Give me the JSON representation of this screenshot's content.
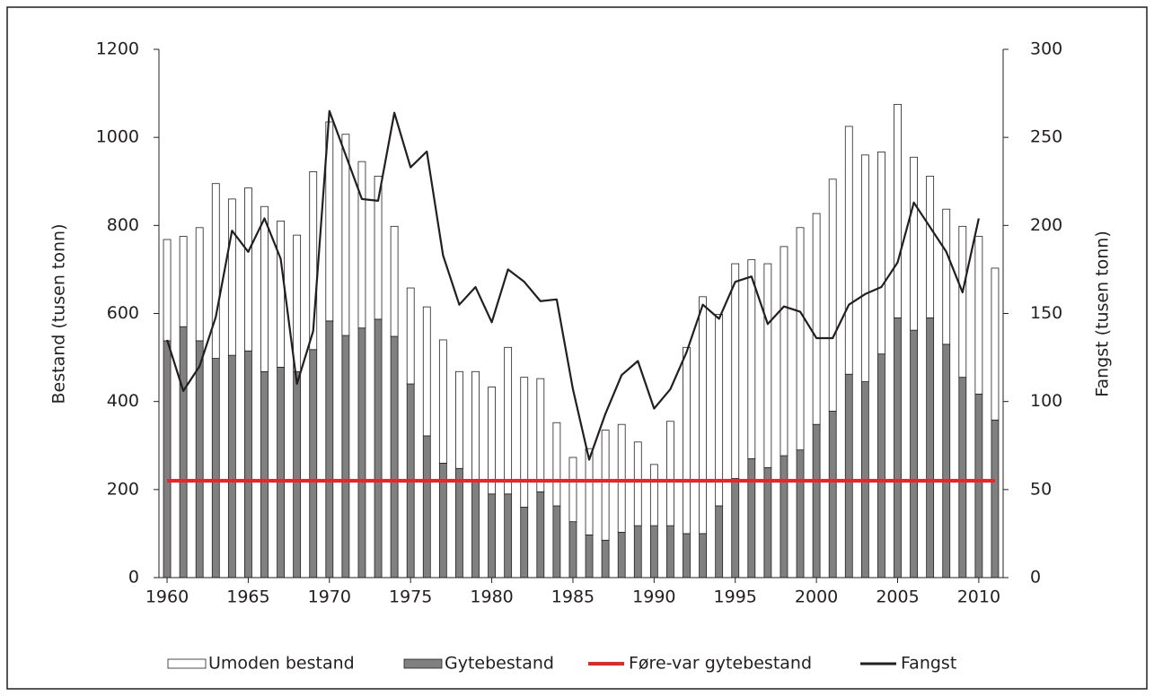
{
  "chart_data": {
    "type": "bar",
    "x": [
      1960,
      1961,
      1962,
      1963,
      1964,
      1965,
      1966,
      1967,
      1968,
      1969,
      1970,
      1971,
      1972,
      1973,
      1974,
      1975,
      1976,
      1977,
      1978,
      1979,
      1980,
      1981,
      1982,
      1983,
      1984,
      1985,
      1986,
      1987,
      1988,
      1989,
      1990,
      1991,
      1992,
      1993,
      1994,
      1995,
      1996,
      1997,
      1998,
      1999,
      2000,
      2001,
      2002,
      2003,
      2004,
      2005,
      2006,
      2007,
      2008,
      2009,
      2010,
      2011
    ],
    "xlim": [
      1959.5,
      2011.5
    ],
    "xticks": [
      1960,
      1965,
      1970,
      1975,
      1980,
      1985,
      1990,
      1995,
      2000,
      2005,
      2010
    ],
    "ylabel": "Bestand (tusen tonn)",
    "y2label": "Fangst (tusen tonn)",
    "ylim": [
      0,
      1200
    ],
    "yticks": [
      0,
      200,
      400,
      600,
      800,
      1000,
      1200
    ],
    "y2lim": [
      0,
      300
    ],
    "y2ticks": [
      0,
      50,
      100,
      150,
      200,
      250,
      300
    ],
    "series": [
      {
        "name": "Umoden bestand",
        "type": "bar",
        "color": "#ffffff",
        "values": [
          230,
          205,
          257,
          397,
          355,
          370,
          375,
          332,
          310,
          404,
          452,
          457,
          378,
          325,
          250,
          218,
          293,
          280,
          220,
          248,
          243,
          333,
          295,
          257,
          189,
          146,
          196,
          250,
          245,
          190,
          139,
          237,
          423,
          538,
          435,
          488,
          452,
          463,
          475,
          505,
          479,
          527,
          563,
          515,
          459,
          485,
          393,
          322,
          307,
          343,
          358,
          345
        ]
      },
      {
        "name": "Gytebestand",
        "type": "bar",
        "color": "#808080",
        "values": [
          538,
          570,
          538,
          498,
          505,
          515,
          468,
          478,
          468,
          518,
          583,
          550,
          567,
          587,
          548,
          440,
          322,
          260,
          248,
          220,
          190,
          190,
          160,
          195,
          163,
          127,
          97,
          85,
          103,
          118,
          118,
          118,
          100,
          100,
          163,
          225,
          270,
          250,
          277,
          290,
          348,
          378,
          462,
          445,
          508,
          590,
          562,
          590,
          530,
          455,
          417,
          358
        ]
      },
      {
        "name": "Føre-var gytebestand",
        "type": "line",
        "color": "#e8262a",
        "values": [
          220,
          220,
          220,
          220,
          220,
          220,
          220,
          220,
          220,
          220,
          220,
          220,
          220,
          220,
          220,
          220,
          220,
          220,
          220,
          220,
          220,
          220,
          220,
          220,
          220,
          220,
          220,
          220,
          220,
          220,
          220,
          220,
          220,
          220,
          220,
          220,
          220,
          220,
          220,
          220,
          220,
          220,
          220,
          220,
          220,
          220,
          220,
          220,
          220,
          220,
          220,
          220
        ]
      },
      {
        "name": "Fangst",
        "type": "line",
        "color": "#231f20",
        "axis": "y2",
        "values": [
          135,
          106,
          120,
          148,
          197,
          185,
          204,
          181,
          110,
          140,
          265,
          240,
          215,
          214,
          264,
          233,
          242,
          183,
          155,
          165,
          145,
          175,
          168,
          157,
          158,
          107,
          67,
          93,
          115,
          123,
          96,
          107,
          128,
          155,
          147,
          168,
          171,
          144,
          154,
          151,
          136,
          136,
          155,
          161,
          165,
          179,
          213,
          199,
          185,
          162,
          204,
          null
        ]
      }
    ]
  }
}
